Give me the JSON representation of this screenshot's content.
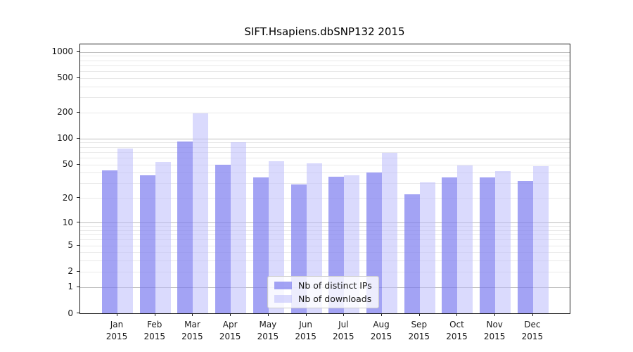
{
  "title": "SIFT.Hsapiens.dbSNP132 2015",
  "chart_data": {
    "type": "bar",
    "title": "SIFT.Hsapiens.dbSNP132 2015",
    "scale": "log-like (position proportional to log10(1+y))",
    "categories": [
      "Jan",
      "Feb",
      "Mar",
      "Apr",
      "May",
      "Jun",
      "Jul",
      "Aug",
      "Sep",
      "Oct",
      "Nov",
      "Dec"
    ],
    "x_year": "2015",
    "series": [
      {
        "name": "Nb of distinct IPs",
        "color": "rgba(124,124,240,0.70)",
        "values": [
          43,
          37,
          92,
          50,
          35,
          29,
          36,
          40,
          22,
          35,
          35,
          32
        ]
      },
      {
        "name": "Nb of downloads",
        "color": "rgba(188,188,252,0.55)",
        "values": [
          77,
          54,
          196,
          91,
          55,
          52,
          37,
          68,
          31,
          49,
          42,
          48
        ]
      }
    ],
    "y_ticks": [
      0,
      1,
      2,
      5,
      10,
      20,
      50,
      100,
      200,
      500,
      1000
    ],
    "ylim": [
      0,
      1200
    ],
    "grid": true,
    "legend_position": "lower center",
    "colors": {
      "major_grid": "#bdbdbd",
      "minor_grid": "#e9e9e9",
      "spine": "#1c1c1c",
      "text": "#1a1a1a"
    }
  }
}
